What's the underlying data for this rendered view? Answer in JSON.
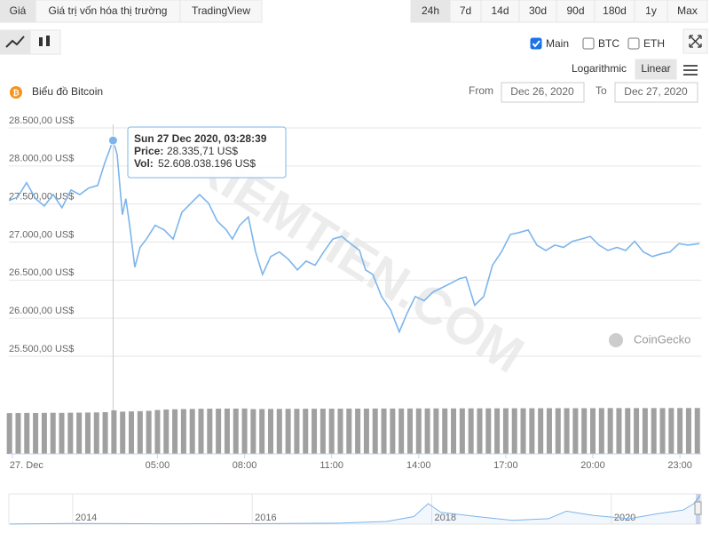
{
  "ui": {
    "tabs": [
      "Giá",
      "Giá trị vốn hóa thị trường",
      "TradingView"
    ],
    "ranges": [
      "24h",
      "7d",
      "14d",
      "30d",
      "90d",
      "180d",
      "1y",
      "Max"
    ],
    "checks": [
      "Main",
      "BTC",
      "ETH"
    ],
    "scales": [
      "Logarithmic",
      "Linear"
    ],
    "chart_name": "Biểu đồ Bitcoin",
    "from_label": "From",
    "from_value": "Dec 26, 2020",
    "to_label": "To",
    "to_value": "Dec 27, 2020",
    "credit": "CoinGecko",
    "watermark": "KIEMTIEN.COM"
  },
  "chart_data": {
    "type": "line",
    "color": "#7cb5ec",
    "x": [
      -0.12,
      0.18,
      0.49,
      0.8,
      1.1,
      1.41,
      1.71,
      2.02,
      2.32,
      2.63,
      2.94,
      3.18,
      3.47,
      3.61,
      3.79,
      3.91,
      4.04,
      4.22,
      4.4,
      4.62,
      4.92,
      5.23,
      5.54,
      5.84,
      6.15,
      6.45,
      6.76,
      7.06,
      7.37,
      7.58,
      7.83,
      8.13,
      8.38,
      8.62,
      8.9,
      9.2,
      9.51,
      9.82,
      10.12,
      10.43,
      10.73,
      11.04,
      11.35,
      11.65,
      11.96,
      12.17,
      12.42,
      12.72,
      13.03,
      13.33,
      13.58,
      13.88,
      14.19,
      14.5,
      14.8,
      15.11,
      15.41,
      15.63,
      15.93,
      16.24,
      16.54,
      16.85,
      17.16,
      17.46,
      17.77,
      18.07,
      18.38,
      18.69,
      18.99,
      19.3,
      19.6,
      19.91,
      20.21,
      20.52,
      20.83,
      21.13,
      21.44,
      21.74,
      22.05,
      22.35,
      22.66,
      22.97,
      23.27,
      23.67
    ],
    "values": [
      27545,
      27590,
      27780,
      27570,
      27475,
      27625,
      27450,
      27685,
      27625,
      27710,
      27745,
      28035,
      28335.71,
      28150,
      27360,
      27570,
      27220,
      26670,
      26930,
      27040,
      27220,
      27160,
      27040,
      27390,
      27510,
      27625,
      27510,
      27275,
      27160,
      27040,
      27220,
      27330,
      26870,
      26575,
      26810,
      26870,
      26775,
      26635,
      26750,
      26695,
      26870,
      27040,
      27075,
      26980,
      26890,
      26635,
      26575,
      26285,
      26110,
      25820,
      26050,
      26285,
      26230,
      26345,
      26400,
      26460,
      26520,
      26540,
      26170,
      26285,
      26695,
      26870,
      27100,
      27125,
      27160,
      26960,
      26890,
      26960,
      26930,
      27010,
      27040,
      27075,
      26960,
      26890,
      26930,
      26890,
      27010,
      26870,
      26810,
      26845,
      26870,
      26980,
      26960,
      26980
    ],
    "xlim": [
      -0.12,
      23.73
    ],
    "ylim": [
      25500,
      28500
    ],
    "yticks": [
      {
        "value": 25500,
        "label": "25.500,00 US$"
      },
      {
        "value": 26000,
        "label": "26.000,00 US$"
      },
      {
        "value": 26500,
        "label": "26.500,00 US$"
      },
      {
        "value": 27000,
        "label": "27.000,00 US$"
      },
      {
        "value": 27500,
        "label": "27.500,00 US$"
      },
      {
        "value": 28000,
        "label": "28.000,00 US$"
      },
      {
        "value": 28500,
        "label": "28.500,00 US$"
      }
    ],
    "xticks": [
      {
        "value": 0,
        "label": "27. Dec"
      },
      {
        "value": 5,
        "label": "05:00"
      },
      {
        "value": 8,
        "label": "08:00"
      },
      {
        "value": 11,
        "label": "11:00"
      },
      {
        "value": 14,
        "label": "14:00"
      },
      {
        "value": 17,
        "label": "17:00"
      },
      {
        "value": 20,
        "label": "20:00"
      },
      {
        "value": 23,
        "label": "23:00"
      }
    ],
    "grid": true,
    "tooltip": {
      "index": 12,
      "title": "Sun 27 Dec 2020, 03:28:39",
      "price_label": "Price:",
      "price": "28.335,71 US$",
      "vol_label": "Vol:",
      "vol": "52.608.038.196 US$"
    },
    "volume": {
      "color": "#a0a0a0",
      "ylim": [
        0,
        60000000000
      ],
      "x": [
        -0.1,
        0.2,
        0.5,
        0.8,
        1.1,
        1.4,
        1.7,
        2.0,
        2.3,
        2.6,
        2.9,
        3.2,
        3.5,
        3.8,
        4.1,
        4.4,
        4.7,
        5.0,
        5.3,
        5.6,
        5.9,
        6.2,
        6.5,
        6.8,
        7.1,
        7.4,
        7.7,
        8.0,
        8.3,
        8.6,
        8.9,
        9.2,
        9.5,
        9.8,
        10.1,
        10.4,
        10.7,
        11.0,
        11.3,
        11.6,
        11.9,
        12.2,
        12.5,
        12.8,
        13.1,
        13.4,
        13.7,
        14.0,
        14.3,
        14.6,
        14.9,
        15.2,
        15.5,
        15.8,
        16.1,
        16.4,
        16.7,
        17.0,
        17.3,
        17.6,
        17.9,
        18.2,
        18.5,
        18.8,
        19.1,
        19.4,
        19.7,
        20.0,
        20.3,
        20.6,
        20.9,
        21.2,
        21.5,
        21.8,
        22.1,
        22.4,
        22.7,
        23.0,
        23.3,
        23.6
      ],
      "values": [
        49200000000,
        49300000000,
        49400000000,
        49300000000,
        49500000000,
        49600000000,
        49500000000,
        49700000000,
        49800000000,
        49900000000,
        50100000000,
        50400000000,
        52608038196,
        51000000000,
        51300000000,
        51600000000,
        52000000000,
        53000000000,
        53600000000,
        53900000000,
        54100000000,
        54300000000,
        54500000000,
        54600000000,
        54600000000,
        54700000000,
        54700000000,
        54800000000,
        54100000000,
        54200000000,
        54300000000,
        54300000000,
        54400000000,
        54400000000,
        54500000000,
        54500000000,
        54600000000,
        54600000000,
        54600000000,
        54700000000,
        54700000000,
        54700000000,
        54800000000,
        54800000000,
        54800000000,
        54800000000,
        54800000000,
        54900000000,
        54900000000,
        54900000000,
        54900000000,
        54900000000,
        55000000000,
        55000000000,
        55000000000,
        55000000000,
        55000000000,
        55100000000,
        55100000000,
        55100000000,
        55100000000,
        55100000000,
        55200000000,
        55200000000,
        55200000000,
        55200000000,
        55200000000,
        55200000000,
        55300000000,
        55300000000,
        55300000000,
        55300000000,
        55300000000,
        55300000000,
        55300000000,
        55300000000,
        55400000000,
        55400000000,
        55400000000,
        55400000000
      ]
    },
    "navigator": {
      "color": "#7cb5ec",
      "x": [
        2013.3,
        2014.0,
        2015.0,
        2016.0,
        2017.0,
        2017.5,
        2017.8,
        2017.96,
        2018.1,
        2018.5,
        2018.9,
        2019.3,
        2019.5,
        2019.8,
        2020.2,
        2020.5,
        2020.8,
        2020.92,
        2020.99
      ],
      "values": [
        100,
        600,
        300,
        430,
        1000,
        2500,
        7000,
        19000,
        11000,
        7000,
        3500,
        5000,
        12000,
        8000,
        5000,
        9500,
        13000,
        19000,
        27000
      ],
      "xlim": [
        2013.29,
        2021.0
      ],
      "ylim": [
        0,
        28000
      ],
      "xticks": [
        2014,
        2016,
        2018,
        2020
      ]
    }
  }
}
